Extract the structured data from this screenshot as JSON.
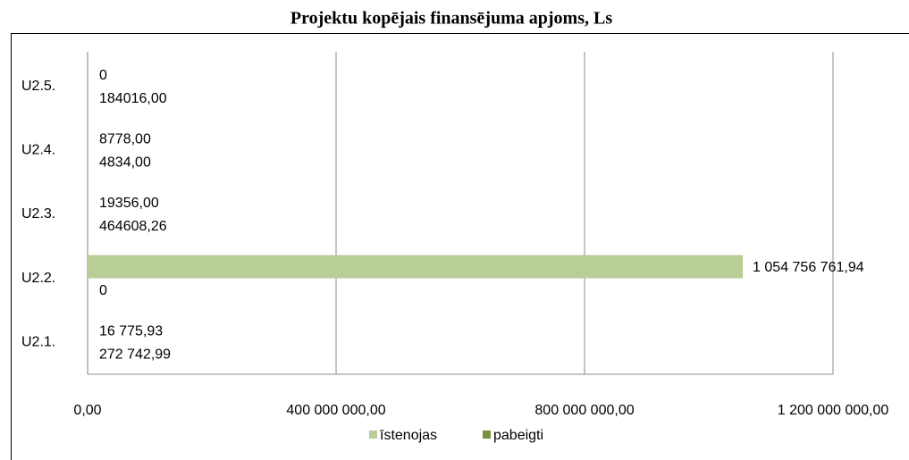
{
  "chart_data": {
    "type": "hbar",
    "title": "Projektu kopējais finansējuma apjoms, Ls",
    "categories": [
      "U2.1.",
      "U2.2.",
      "U2.3.",
      "U2.4.",
      "U2.5."
    ],
    "series": [
      {
        "name": "īstenojas",
        "color": "#b9cd96",
        "values": [
          16775.93,
          1054756761.94,
          19356,
          8778,
          0
        ],
        "value_labels": [
          "16 775,93",
          "1 054 756 761,94",
          "19356,00",
          "8778,00",
          "0"
        ]
      },
      {
        "name": "pabeigti",
        "color": "#77933c",
        "values": [
          272742.99,
          0,
          464608.26,
          4834,
          184016
        ],
        "value_labels": [
          "272 742,99",
          "0",
          "464608,26",
          "4834,00",
          "184016,00"
        ]
      }
    ],
    "xlim": [
      0,
      1200000000
    ],
    "xticks": [
      {
        "value": 0,
        "label": "0,00"
      },
      {
        "value": 400000000,
        "label": "400 000 000,00"
      },
      {
        "value": 800000000,
        "label": "800 000 000,00"
      },
      {
        "value": 1200000000,
        "label": "1 200 000 000,00"
      }
    ],
    "grid": true,
    "legend": "bottom"
  }
}
